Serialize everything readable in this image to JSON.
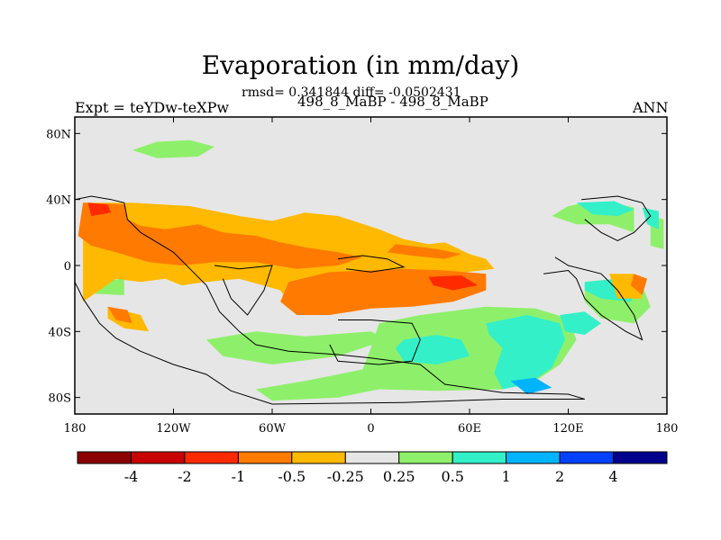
{
  "title": "Evaporation (in mm/day)",
  "stats": "rmsd= 0.341844 diff= -0.0502431",
  "experiment": "Expt = teYDw-teXPw",
  "case": "498_8_MaBP - 498_8_MaBP",
  "season": "ANN",
  "colors": {
    "background_field": "#e6e6e6",
    "coast": "#000000"
  },
  "chart_data": {
    "type": "heatmap",
    "projection": "cylindrical-equidistant",
    "xlim": [
      -180,
      180
    ],
    "ylim": [
      -90,
      90
    ],
    "x_ticks": [
      {
        "value": -180,
        "label": "180"
      },
      {
        "value": -120,
        "label": "120W"
      },
      {
        "value": -60,
        "label": "60W"
      },
      {
        "value": 0,
        "label": "0"
      },
      {
        "value": 60,
        "label": "60E"
      },
      {
        "value": 120,
        "label": "120E"
      },
      {
        "value": 180,
        "label": "180"
      }
    ],
    "y_ticks": [
      {
        "value": 80,
        "label": "80N"
      },
      {
        "value": 40,
        "label": "40N"
      },
      {
        "value": 0,
        "label": "0"
      },
      {
        "value": -40,
        "label": "40S"
      },
      {
        "value": -80,
        "label": "80S"
      }
    ],
    "colorbar": {
      "colors": [
        "#8b0000",
        "#c80000",
        "#ff2a00",
        "#ff7a00",
        "#ffb900",
        "#e6e6e6",
        "#8ef06a",
        "#33f0c8",
        "#00b4ff",
        "#0040ff",
        "#00008c"
      ],
      "levels": [
        "-4",
        "-2",
        "-1",
        "-0.5",
        "-0.25",
        "0.25",
        "0.5",
        "1",
        "2",
        "4"
      ]
    },
    "regions": [
      {
        "level": 6,
        "poly": [
          [
            -145,
            70
          ],
          [
            -130,
            75
          ],
          [
            -110,
            76
          ],
          [
            -95,
            72
          ],
          [
            -105,
            66
          ],
          [
            -130,
            65
          ]
        ]
      },
      {
        "level": 6,
        "poly": [
          [
            -170,
            20
          ],
          [
            -150,
            22
          ],
          [
            -130,
            18
          ],
          [
            -125,
            12
          ],
          [
            -145,
            12
          ],
          [
            -165,
            15
          ]
        ]
      },
      {
        "level": 6,
        "poly": [
          [
            -170,
            -10
          ],
          [
            -150,
            -8
          ],
          [
            -150,
            -18
          ],
          [
            -170,
            -17
          ]
        ]
      },
      {
        "level": 6,
        "poly": [
          [
            -100,
            -45
          ],
          [
            -70,
            -40
          ],
          [
            -40,
            -43
          ],
          [
            0,
            -40
          ],
          [
            10,
            -45
          ],
          [
            -20,
            -55
          ],
          [
            -60,
            -60
          ],
          [
            -90,
            -55
          ]
        ]
      },
      {
        "level": 6,
        "poly": [
          [
            5,
            -35
          ],
          [
            30,
            -30
          ],
          [
            70,
            -25
          ],
          [
            100,
            -26
          ],
          [
            120,
            -32
          ],
          [
            125,
            -45
          ],
          [
            115,
            -60
          ],
          [
            100,
            -70
          ],
          [
            80,
            -75
          ],
          [
            40,
            -76
          ],
          [
            5,
            -75
          ],
          [
            -20,
            -80
          ],
          [
            -60,
            -82
          ],
          [
            -70,
            -75
          ],
          [
            -40,
            -70
          ],
          [
            -5,
            -63
          ],
          [
            0,
            -50
          ]
        ]
      },
      {
        "level": 6,
        "poly": [
          [
            110,
            30
          ],
          [
            120,
            36
          ],
          [
            130,
            38
          ],
          [
            148,
            38
          ],
          [
            160,
            35
          ],
          [
            160,
            20
          ],
          [
            145,
            25
          ],
          [
            125,
            25
          ]
        ]
      },
      {
        "level": 6,
        "poly": [
          [
            130,
            -10
          ],
          [
            150,
            -8
          ],
          [
            165,
            -12
          ],
          [
            170,
            -25
          ],
          [
            160,
            -35
          ],
          [
            140,
            -32
          ],
          [
            130,
            -22
          ]
        ]
      },
      {
        "level": 6,
        "poly": [
          [
            170,
            30
          ],
          [
            178,
            28
          ],
          [
            178,
            10
          ],
          [
            170,
            12
          ]
        ]
      },
      {
        "level": 7,
        "poly": [
          [
            20,
            -45
          ],
          [
            40,
            -42
          ],
          [
            55,
            -45
          ],
          [
            60,
            -55
          ],
          [
            40,
            -60
          ],
          [
            20,
            -58
          ],
          [
            15,
            -50
          ]
        ]
      },
      {
        "level": 7,
        "poly": [
          [
            70,
            -35
          ],
          [
            95,
            -30
          ],
          [
            115,
            -35
          ],
          [
            118,
            -45
          ],
          [
            110,
            -62
          ],
          [
            95,
            -72
          ],
          [
            80,
            -75
          ],
          [
            75,
            -65
          ],
          [
            80,
            -50
          ],
          [
            72,
            -42
          ]
        ]
      },
      {
        "level": 7,
        "poly": [
          [
            115,
            -30
          ],
          [
            130,
            -28
          ],
          [
            140,
            -35
          ],
          [
            130,
            -42
          ],
          [
            118,
            -40
          ]
        ]
      },
      {
        "level": 7,
        "poly": [
          [
            130,
            -10
          ],
          [
            150,
            -8
          ],
          [
            163,
            -14
          ],
          [
            158,
            -22
          ],
          [
            140,
            -20
          ],
          [
            130,
            -15
          ]
        ]
      },
      {
        "level": 7,
        "poly": [
          [
            125,
            38
          ],
          [
            148,
            39
          ],
          [
            160,
            34
          ],
          [
            150,
            30
          ],
          [
            135,
            31
          ]
        ]
      },
      {
        "level": 7,
        "poly": [
          [
            165,
            35
          ],
          [
            175,
            33
          ],
          [
            175,
            22
          ],
          [
            168,
            25
          ]
        ]
      },
      {
        "level": 8,
        "poly": [
          [
            85,
            -70
          ],
          [
            100,
            -68
          ],
          [
            110,
            -74
          ],
          [
            95,
            -78
          ]
        ]
      },
      {
        "level": 4,
        "poly": [
          [
            -175,
            38
          ],
          [
            -145,
            38
          ],
          [
            -110,
            36
          ],
          [
            -80,
            30
          ],
          [
            -60,
            27
          ],
          [
            -40,
            32
          ],
          [
            -20,
            30
          ],
          [
            5,
            22
          ],
          [
            20,
            16
          ],
          [
            35,
            13
          ],
          [
            45,
            14
          ],
          [
            60,
            7
          ],
          [
            70,
            4
          ],
          [
            75,
            -2
          ],
          [
            50,
            -5
          ],
          [
            30,
            -12
          ],
          [
            15,
            -15
          ],
          [
            0,
            -20
          ],
          [
            -10,
            -25
          ],
          [
            -25,
            -30
          ],
          [
            -45,
            -30
          ],
          [
            -55,
            -15
          ],
          [
            -80,
            -8
          ],
          [
            -100,
            -10
          ],
          [
            -115,
            -12
          ],
          [
            -125,
            -8
          ],
          [
            -140,
            -10
          ],
          [
            -155,
            -8
          ],
          [
            -165,
            -15
          ],
          [
            -175,
            -22
          ],
          [
            -175,
            0
          ]
        ]
      },
      {
        "level": 4,
        "poly": [
          [
            -160,
            -25
          ],
          [
            -140,
            -30
          ],
          [
            -135,
            -40
          ],
          [
            -150,
            -38
          ],
          [
            -160,
            -32
          ]
        ]
      },
      {
        "level": 4,
        "poly": [
          [
            145,
            -5
          ],
          [
            160,
            -5
          ],
          [
            165,
            -20
          ],
          [
            150,
            -20
          ]
        ]
      },
      {
        "level": 3,
        "poly": [
          [
            -175,
            38
          ],
          [
            -150,
            37
          ],
          [
            -148,
            28
          ],
          [
            -140,
            24
          ],
          [
            -125,
            22
          ],
          [
            -105,
            25
          ],
          [
            -90,
            20
          ],
          [
            -70,
            18
          ],
          [
            -55,
            14
          ],
          [
            -40,
            11
          ],
          [
            -20,
            8
          ],
          [
            -5,
            5
          ],
          [
            -20,
            0
          ],
          [
            -45,
            -2
          ],
          [
            -70,
            2
          ],
          [
            -95,
            2
          ],
          [
            -115,
            0
          ],
          [
            -135,
            2
          ],
          [
            -155,
            8
          ],
          [
            -170,
            12
          ],
          [
            -178,
            18
          ]
        ]
      },
      {
        "level": 3,
        "poly": [
          [
            -50,
            -10
          ],
          [
            -25,
            -4
          ],
          [
            0,
            -3
          ],
          [
            20,
            -2
          ],
          [
            45,
            -3
          ],
          [
            70,
            -5
          ],
          [
            70,
            -15
          ],
          [
            50,
            -22
          ],
          [
            25,
            -25
          ],
          [
            0,
            -26
          ],
          [
            -25,
            -30
          ],
          [
            -45,
            -30
          ],
          [
            -55,
            -22
          ]
        ]
      },
      {
        "level": 3,
        "poly": [
          [
            15,
            13
          ],
          [
            40,
            10
          ],
          [
            55,
            7
          ],
          [
            45,
            4
          ],
          [
            25,
            6
          ],
          [
            10,
            8
          ]
        ]
      },
      {
        "level": 3,
        "poly": [
          [
            -160,
            -25
          ],
          [
            -148,
            -27
          ],
          [
            -145,
            -35
          ],
          [
            -155,
            -33
          ]
        ]
      },
      {
        "level": 3,
        "poly": [
          [
            160,
            -5
          ],
          [
            168,
            -8
          ],
          [
            165,
            -18
          ],
          [
            158,
            -12
          ]
        ]
      },
      {
        "level": 2,
        "poly": [
          [
            -172,
            38
          ],
          [
            -160,
            37
          ],
          [
            -158,
            32
          ],
          [
            -170,
            30
          ]
        ]
      },
      {
        "level": 2,
        "poly": [
          [
            35,
            -7
          ],
          [
            55,
            -6
          ],
          [
            65,
            -12
          ],
          [
            50,
            -15
          ],
          [
            38,
            -12
          ]
        ]
      }
    ],
    "coastlines": [
      [
        [
          -180,
          40
        ],
        [
          -170,
          42
        ],
        [
          -158,
          40
        ],
        [
          -150,
          38
        ],
        [
          -148,
          28
        ],
        [
          -140,
          20
        ],
        [
          -130,
          14
        ],
        [
          -120,
          8
        ],
        [
          -110,
          -2
        ],
        [
          -100,
          -12
        ],
        [
          -92,
          -28
        ],
        [
          -80,
          -40
        ],
        [
          -70,
          -48
        ],
        [
          -50,
          -52
        ],
        [
          -20,
          -54
        ],
        [
          0,
          -56
        ],
        [
          30,
          -60
        ],
        [
          45,
          -72
        ],
        [
          80,
          -77
        ],
        [
          120,
          -78
        ],
        [
          130,
          -81
        ],
        [
          80,
          -81
        ],
        [
          20,
          -83
        ],
        [
          -60,
          -84
        ],
        [
          -85,
          -76
        ],
        [
          -100,
          -66
        ],
        [
          -120,
          -60
        ],
        [
          -140,
          -52
        ],
        [
          -155,
          -44
        ],
        [
          -165,
          -35
        ],
        [
          -175,
          -20
        ],
        [
          -180,
          -10
        ]
      ],
      [
        [
          -95,
          0
        ],
        [
          -80,
          -2
        ],
        [
          -60,
          0
        ],
        [
          -65,
          -15
        ],
        [
          -75,
          -30
        ],
        [
          -85,
          -20
        ],
        [
          -90,
          -8
        ]
      ],
      [
        [
          -20,
          -33
        ],
        [
          0,
          -33
        ],
        [
          25,
          -35
        ],
        [
          30,
          -45
        ],
        [
          25,
          -58
        ],
        [
          5,
          -60
        ],
        [
          -20,
          -58
        ],
        [
          -25,
          -48
        ]
      ],
      [
        [
          -20,
          4
        ],
        [
          -5,
          6
        ],
        [
          10,
          4
        ],
        [
          20,
          -1
        ],
        [
          0,
          -4
        ],
        [
          -15,
          -2
        ]
      ],
      [
        [
          105,
          -5
        ],
        [
          120,
          -3
        ],
        [
          125,
          -8
        ],
        [
          130,
          -20
        ],
        [
          140,
          -30
        ],
        [
          155,
          -40
        ],
        [
          165,
          -45
        ],
        [
          160,
          -30
        ],
        [
          150,
          -15
        ],
        [
          140,
          -5
        ],
        [
          120,
          0
        ],
        [
          112,
          5
        ]
      ],
      [
        [
          128,
          40
        ],
        [
          150,
          42
        ],
        [
          165,
          38
        ],
        [
          170,
          30
        ],
        [
          160,
          20
        ],
        [
          150,
          15
        ],
        [
          140,
          20
        ],
        [
          130,
          28
        ]
      ]
    ]
  }
}
